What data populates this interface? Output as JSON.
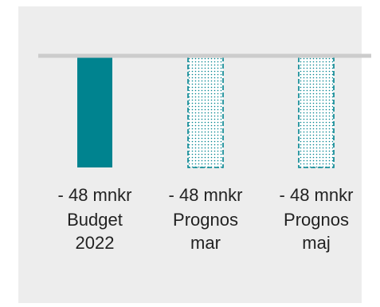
{
  "chart_data": {
    "type": "bar",
    "categories": [
      [
        "Budget",
        "2022"
      ],
      [
        "Prognos",
        "mar"
      ],
      [
        "Prognos",
        "maj"
      ]
    ],
    "values": [
      -48,
      -48,
      -48
    ],
    "value_labels": [
      "- 48 mnkr",
      "- 48 mnkr",
      "- 48 mnkr"
    ],
    "styles": [
      "solid",
      "dotted",
      "dotted"
    ],
    "colors": {
      "bar": "#00838f",
      "baseline": "#cccccc",
      "background": "#ededed",
      "text": "#222222"
    },
    "ylim": [
      -48,
      0
    ],
    "grid": false,
    "legend": "none"
  }
}
